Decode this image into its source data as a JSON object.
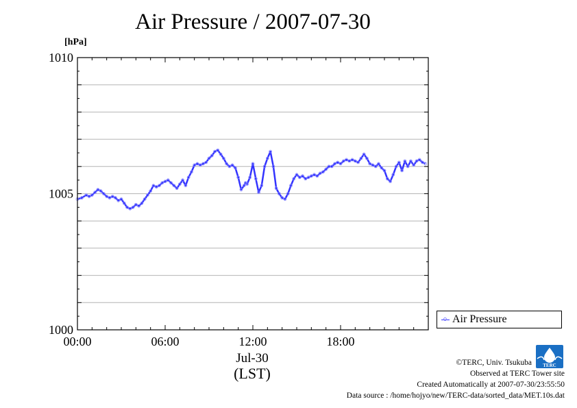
{
  "chart_data": {
    "type": "line",
    "title": "Air Pressure / 2007-07-30",
    "ylabel": "[hPa]",
    "ylim": [
      1000,
      1010
    ],
    "y_tick_labels": [
      "1010",
      "1005",
      "1000"
    ],
    "y_ticks": [
      1010,
      1005,
      1000
    ],
    "xlim": [
      0,
      23.8
    ],
    "x_ticks": [
      0,
      6,
      12,
      18
    ],
    "x_tick_labels": [
      "00:00",
      "06:00",
      "12:00",
      "18:00"
    ],
    "x_date_label": "Jul-30",
    "x_timezone_label": "(LST)",
    "grid": true,
    "legend_position": "right",
    "series": [
      {
        "name": "Air Pressure",
        "color": "#3333ff",
        "marker_color": "#8888ff",
        "x": [
          0.0,
          0.3,
          0.6,
          0.8,
          1.0,
          1.2,
          1.4,
          1.6,
          1.8,
          2.0,
          2.2,
          2.4,
          2.6,
          2.8,
          3.0,
          3.2,
          3.4,
          3.6,
          3.8,
          4.0,
          4.2,
          4.4,
          4.6,
          4.8,
          5.0,
          5.2,
          5.4,
          5.6,
          5.8,
          6.0,
          6.2,
          6.4,
          6.6,
          6.8,
          7.0,
          7.2,
          7.4,
          7.6,
          7.8,
          8.0,
          8.2,
          8.4,
          8.6,
          8.8,
          9.0,
          9.2,
          9.4,
          9.6,
          9.8,
          10.0,
          10.2,
          10.4,
          10.6,
          10.8,
          11.0,
          11.2,
          11.4,
          11.5,
          11.6,
          11.8,
          12.0,
          12.2,
          12.4,
          12.6,
          12.8,
          13.0,
          13.2,
          13.4,
          13.6,
          13.8,
          14.0,
          14.2,
          14.4,
          14.6,
          14.8,
          15.0,
          15.2,
          15.4,
          15.6,
          15.8,
          16.0,
          16.2,
          16.4,
          16.6,
          16.8,
          17.0,
          17.2,
          17.4,
          17.6,
          17.8,
          18.0,
          18.2,
          18.4,
          18.6,
          18.8,
          19.0,
          19.2,
          19.4,
          19.6,
          19.8,
          20.0,
          20.2,
          20.4,
          20.6,
          20.8,
          21.0,
          21.2,
          21.4,
          21.6,
          21.8,
          22.0,
          22.2,
          22.4,
          22.6,
          22.8,
          23.0,
          23.2,
          23.4,
          23.6,
          23.8
        ],
        "y": [
          1004.8,
          1004.85,
          1004.95,
          1004.9,
          1004.95,
          1005.05,
          1005.15,
          1005.1,
          1005.0,
          1004.9,
          1004.85,
          1004.9,
          1004.85,
          1004.75,
          1004.8,
          1004.65,
          1004.5,
          1004.45,
          1004.5,
          1004.6,
          1004.55,
          1004.65,
          1004.8,
          1004.95,
          1005.1,
          1005.3,
          1005.25,
          1005.3,
          1005.4,
          1005.45,
          1005.5,
          1005.4,
          1005.3,
          1005.2,
          1005.35,
          1005.5,
          1005.3,
          1005.6,
          1005.8,
          1006.05,
          1006.1,
          1006.05,
          1006.1,
          1006.15,
          1006.3,
          1006.4,
          1006.55,
          1006.6,
          1006.45,
          1006.3,
          1006.1,
          1006.0,
          1006.05,
          1005.95,
          1005.6,
          1005.15,
          1005.3,
          1005.4,
          1005.35,
          1005.6,
          1006.1,
          1005.55,
          1005.05,
          1005.3,
          1006.0,
          1006.3,
          1006.55,
          1006.0,
          1005.2,
          1005.0,
          1004.85,
          1004.8,
          1005.0,
          1005.3,
          1005.55,
          1005.7,
          1005.6,
          1005.65,
          1005.55,
          1005.6,
          1005.65,
          1005.7,
          1005.65,
          1005.75,
          1005.8,
          1005.9,
          1006.0,
          1006.0,
          1006.1,
          1006.15,
          1006.1,
          1006.2,
          1006.25,
          1006.2,
          1006.25,
          1006.2,
          1006.15,
          1006.3,
          1006.45,
          1006.3,
          1006.1,
          1006.05,
          1006.0,
          1006.1,
          1005.95,
          1005.85,
          1005.55,
          1005.45,
          1005.7,
          1006.0,
          1006.15,
          1005.85,
          1006.2,
          1006.0,
          1006.2,
          1006.05,
          1006.2,
          1006.25,
          1006.15,
          1006.1
        ]
      }
    ]
  },
  "credits": {
    "copyright": "©TERC, Univ. Tsukuba",
    "site": "Observed at TERC Tower site",
    "created": "Created Automatically at 2007-07-30/23:55:50",
    "source": "Data source : /home/hojyo/new/TERC-data/sorted_data/MET.10s.dat",
    "logo_text": "TERC"
  }
}
